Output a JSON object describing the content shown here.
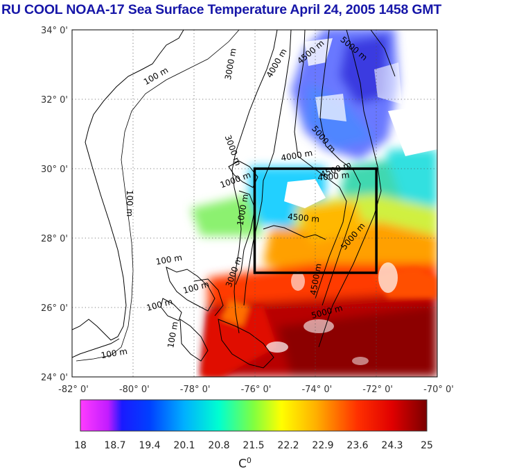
{
  "title": "RU COOL  NOAA-17 Sea Surface Temperature April 24, 2005 1458 GMT",
  "colors": {
    "title": "#1616a8",
    "frame": "#000000",
    "grid": "#666666",
    "coast": "#000000"
  },
  "map": {
    "lon_range": [
      -82,
      -70
    ],
    "lat_range": [
      24,
      34
    ],
    "lon_ticks": [
      "-82° 0'",
      "-80° 0'",
      "-78° 0'",
      "-76° 0'",
      "-74° 0'",
      "-72° 0'",
      "-70° 0'"
    ],
    "lat_ticks": [
      "24° 0'",
      "26° 0'",
      "28° 0'",
      "30° 0'",
      "32° 0'",
      "34° 0'"
    ],
    "grid": "dotted",
    "study_box": {
      "lon": [
        -76,
        -72
      ],
      "lat": [
        27,
        30
      ]
    },
    "contour_labels": [
      {
        "text": "100 m",
        "lon": -79.2,
        "lat": 32.6,
        "rot": -30
      },
      {
        "text": "100 m",
        "lon": -80.2,
        "lat": 29.0,
        "rot": 90
      },
      {
        "text": "3000 m",
        "lon": -76.7,
        "lat": 33.0,
        "rot": -80
      },
      {
        "text": "4000 m",
        "lon": -75.2,
        "lat": 33.0,
        "rot": -60
      },
      {
        "text": "4500 m",
        "lon": -74.1,
        "lat": 33.3,
        "rot": -40
      },
      {
        "text": "5000 m",
        "lon": -72.8,
        "lat": 33.4,
        "rot": 40
      },
      {
        "text": "5000 m",
        "lon": -73.8,
        "lat": 30.8,
        "rot": 50
      },
      {
        "text": "4000 m",
        "lon": -74.6,
        "lat": 30.3,
        "rot": -10
      },
      {
        "text": "4500 m",
        "lon": -73.3,
        "lat": 29.9,
        "rot": -20
      },
      {
        "text": "4000 m",
        "lon": -73.4,
        "lat": 29.7,
        "rot": -5
      },
      {
        "text": "3000 m",
        "lon": -76.8,
        "lat": 30.5,
        "rot": 70
      },
      {
        "text": "1000 m",
        "lon": -76.6,
        "lat": 29.6,
        "rot": -20
      },
      {
        "text": "4500 m",
        "lon": -74.4,
        "lat": 28.5,
        "rot": 5
      },
      {
        "text": "5000 m",
        "lon": -72.7,
        "lat": 28.0,
        "rot": -50
      },
      {
        "text": "4500 m",
        "lon": -73.9,
        "lat": 26.8,
        "rot": -80
      },
      {
        "text": "5000 m",
        "lon": -73.6,
        "lat": 25.8,
        "rot": -15
      },
      {
        "text": "3000 m",
        "lon": -76.6,
        "lat": 27.0,
        "rot": -70
      },
      {
        "text": "1000 m",
        "lon": -76.3,
        "lat": 28.8,
        "rot": -80
      },
      {
        "text": "100 m",
        "lon": -78.8,
        "lat": 27.3,
        "rot": -10
      },
      {
        "text": "100 m",
        "lon": -77.9,
        "lat": 26.5,
        "rot": -15
      },
      {
        "text": "100 m",
        "lon": -79.1,
        "lat": 26.0,
        "rot": -15
      },
      {
        "text": "100 m",
        "lon": -78.6,
        "lat": 25.2,
        "rot": -80
      },
      {
        "text": "100 m",
        "lon": -80.6,
        "lat": 24.6,
        "rot": -10
      }
    ]
  },
  "colorbar": {
    "labels": [
      "18",
      "18.7",
      "19.4",
      "20.1",
      "20.8",
      "21.5",
      "22.2",
      "22.9",
      "23.6",
      "24.3",
      "25"
    ],
    "min": 18,
    "max": 25,
    "unit": "C",
    "unit_sup": "0"
  }
}
